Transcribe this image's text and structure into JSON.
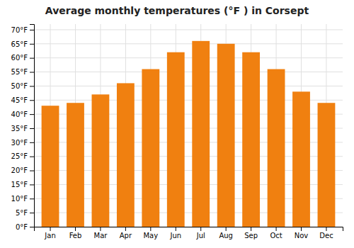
{
  "chart_data": {
    "type": "bar",
    "title": "Average monthly temperatures (°F ) in Corsept",
    "categories": [
      "Jan",
      "Feb",
      "Mar",
      "Apr",
      "May",
      "Jun",
      "Jul",
      "Aug",
      "Sep",
      "Oct",
      "Nov",
      "Dec"
    ],
    "values": [
      43,
      44,
      47,
      51,
      56,
      62,
      66,
      65,
      62,
      56,
      48,
      44
    ],
    "color": "#F08010",
    "ylim": [
      0,
      72
    ],
    "yticks": [
      {
        "value": 0,
        "label": "0°F"
      },
      {
        "value": 5,
        "label": "5°F"
      },
      {
        "value": 10,
        "label": "10°F"
      },
      {
        "value": 15,
        "label": "15°F"
      },
      {
        "value": 20,
        "label": "20°F"
      },
      {
        "value": 25,
        "label": "25°F"
      },
      {
        "value": 30,
        "label": "30°F"
      },
      {
        "value": 35,
        "label": "35°F"
      },
      {
        "value": 40,
        "label": "40°F"
      },
      {
        "value": 45,
        "label": "45°F"
      },
      {
        "value": 50,
        "label": "50°F"
      },
      {
        "value": 55,
        "label": "55°F"
      },
      {
        "value": 60,
        "label": "60°F"
      },
      {
        "value": 65,
        "label": "65°F"
      },
      {
        "value": 70,
        "label": "70°F"
      }
    ],
    "grid": true
  }
}
